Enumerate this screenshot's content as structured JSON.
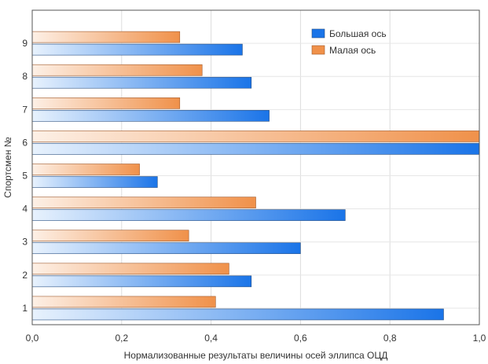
{
  "chart_data": {
    "type": "bar",
    "orientation": "horizontal",
    "title": "",
    "xlabel": "Нормализованные результаты величины осей эллипса ОЦД",
    "ylabel": "Спортсмен №",
    "categories": [
      "1",
      "2",
      "3",
      "4",
      "5",
      "6",
      "7",
      "8",
      "9"
    ],
    "xlim": [
      0,
      1.0
    ],
    "xticks": [
      "0,0",
      "0,2",
      "0,4",
      "0,6",
      "0,8",
      "1,0"
    ],
    "grid": true,
    "legend_position": "top-right",
    "series": [
      {
        "name": "Большая ось",
        "color": "#1a74e8",
        "values": [
          0.92,
          0.49,
          0.6,
          0.7,
          0.28,
          1.0,
          0.53,
          0.49,
          0.47
        ]
      },
      {
        "name": "Малая ось",
        "color": "#f0914a",
        "values": [
          0.41,
          0.44,
          0.35,
          0.5,
          0.24,
          1.0,
          0.33,
          0.38,
          0.33
        ]
      }
    ]
  }
}
